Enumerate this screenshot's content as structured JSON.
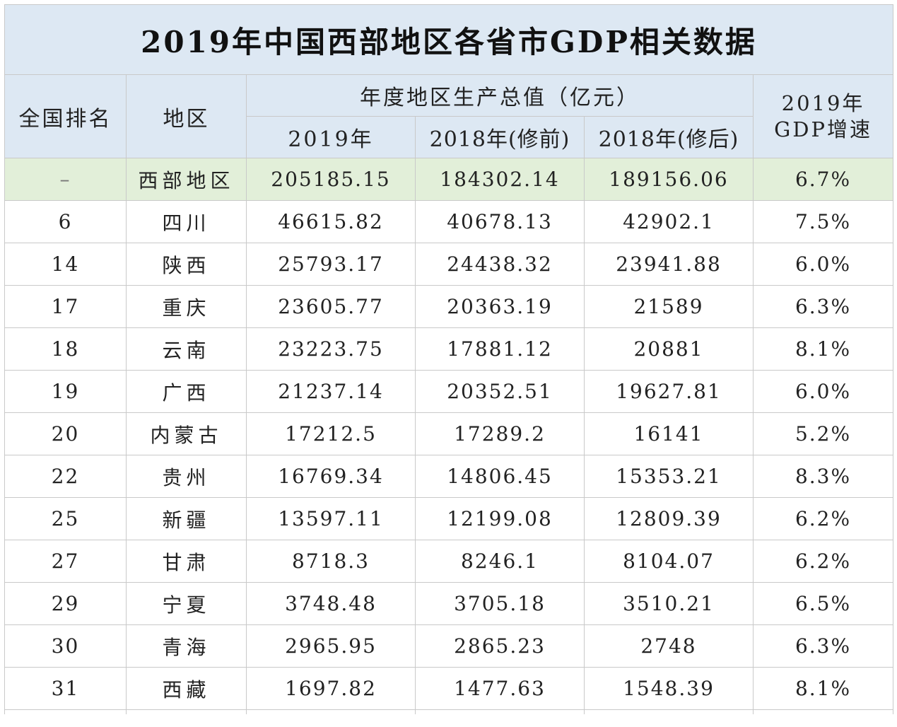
{
  "table": {
    "title": "2019年中国西部地区各省市GDP相关数据",
    "headers": {
      "rank": "全国排名",
      "region": "地区",
      "gdp_group": "年度地区生产总值（亿元）",
      "y2019": "2019年",
      "y2018_before": "2018年(修前)",
      "y2018_after": "2018年(修后)",
      "growth": "2019年\nGDP增速"
    },
    "summary": {
      "rank": "–",
      "region": "西部地区",
      "y2019": "205185.15",
      "y2018_before": "184302.14",
      "y2018_after": "189156.06",
      "growth": "6.7%"
    },
    "rows": [
      {
        "rank": "6",
        "region": "四川",
        "y2019": "46615.82",
        "y2018_before": "40678.13",
        "y2018_after": "42902.1",
        "growth": "7.5%"
      },
      {
        "rank": "14",
        "region": "陕西",
        "y2019": "25793.17",
        "y2018_before": "24438.32",
        "y2018_after": "23941.88",
        "growth": "6.0%"
      },
      {
        "rank": "17",
        "region": "重庆",
        "y2019": "23605.77",
        "y2018_before": "20363.19",
        "y2018_after": "21589",
        "growth": "6.3%"
      },
      {
        "rank": "18",
        "region": "云南",
        "y2019": "23223.75",
        "y2018_before": "17881.12",
        "y2018_after": "20881",
        "growth": "8.1%"
      },
      {
        "rank": "19",
        "region": "广西",
        "y2019": "21237.14",
        "y2018_before": "20352.51",
        "y2018_after": "19627.81",
        "growth": "6.0%"
      },
      {
        "rank": "20",
        "region": "内蒙古",
        "y2019": "17212.5",
        "y2018_before": "17289.2",
        "y2018_after": "16141",
        "growth": "5.2%"
      },
      {
        "rank": "22",
        "region": "贵州",
        "y2019": "16769.34",
        "y2018_before": "14806.45",
        "y2018_after": "15353.21",
        "growth": "8.3%"
      },
      {
        "rank": "25",
        "region": "新疆",
        "y2019": "13597.11",
        "y2018_before": "12199.08",
        "y2018_after": "12809.39",
        "growth": "6.2%"
      },
      {
        "rank": "27",
        "region": "甘肃",
        "y2019": "8718.3",
        "y2018_before": "8246.1",
        "y2018_after": "8104.07",
        "growth": "6.2%"
      },
      {
        "rank": "29",
        "region": "宁夏",
        "y2019": "3748.48",
        "y2018_before": "3705.18",
        "y2018_after": "3510.21",
        "growth": "6.5%"
      },
      {
        "rank": "30",
        "region": "青海",
        "y2019": "2965.95",
        "y2018_before": "2865.23",
        "y2018_after": "2748",
        "growth": "6.3%"
      },
      {
        "rank": "31",
        "region": "西藏",
        "y2019": "1697.82",
        "y2018_before": "1477.63",
        "y2018_after": "1548.39",
        "growth": "8.1%"
      }
    ]
  }
}
